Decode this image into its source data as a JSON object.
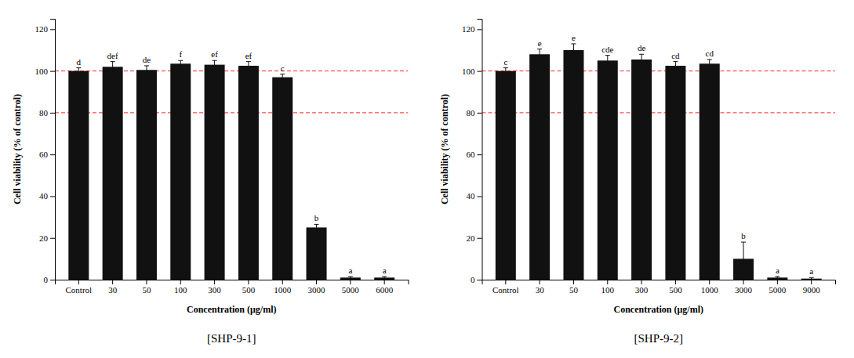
{
  "chart_data": [
    {
      "type": "bar",
      "title": "[SHP-9-1]",
      "categories": [
        "Control",
        "30",
        "50",
        "100",
        "300",
        "500",
        "1000",
        "3000",
        "5000",
        "6000"
      ],
      "values": [
        100,
        102,
        100.5,
        103.5,
        103,
        102.5,
        97,
        25,
        1,
        1
      ],
      "errors": [
        1.5,
        2.5,
        2,
        1.5,
        2,
        2,
        1.5,
        1.5,
        0.5,
        0.5
      ],
      "annotations": [
        "d",
        "def",
        "de",
        "f",
        "ef",
        "ef",
        "c",
        "b",
        "a",
        "a"
      ],
      "xlabel": "Concentration (μg/ml)",
      "ylabel": "Cell viability (% of control)",
      "ylim": [
        0,
        125
      ],
      "yticks": [
        0,
        20,
        40,
        60,
        80,
        100,
        120
      ],
      "hlines": [
        100,
        80
      ],
      "hline_color": "red",
      "color": "#111111",
      "error_color": "#111111",
      "grid": false
    },
    {
      "type": "bar",
      "title": "[SHP-9-2]",
      "categories": [
        "Control",
        "30",
        "50",
        "100",
        "300",
        "500",
        "1000",
        "3000",
        "5000",
        "9000"
      ],
      "values": [
        100,
        108,
        110,
        105,
        105.5,
        102.5,
        103.5,
        10,
        1,
        0.5
      ],
      "errors": [
        1.5,
        2.5,
        3,
        2.5,
        2.5,
        2,
        2,
        8,
        0.5,
        0.5
      ],
      "annotations": [
        "c",
        "e",
        "e",
        "cde",
        "de",
        "cd",
        "cd",
        "b",
        "a",
        "a"
      ],
      "xlabel": "Concentration (μg/ml)",
      "ylabel": "Cell viability (% of control)",
      "ylim": [
        0,
        125
      ],
      "yticks": [
        0,
        20,
        40,
        60,
        80,
        100,
        120
      ],
      "hlines": [
        100,
        80
      ],
      "hline_color": "red",
      "color": "#111111",
      "error_color": "#111111",
      "grid": false
    }
  ]
}
